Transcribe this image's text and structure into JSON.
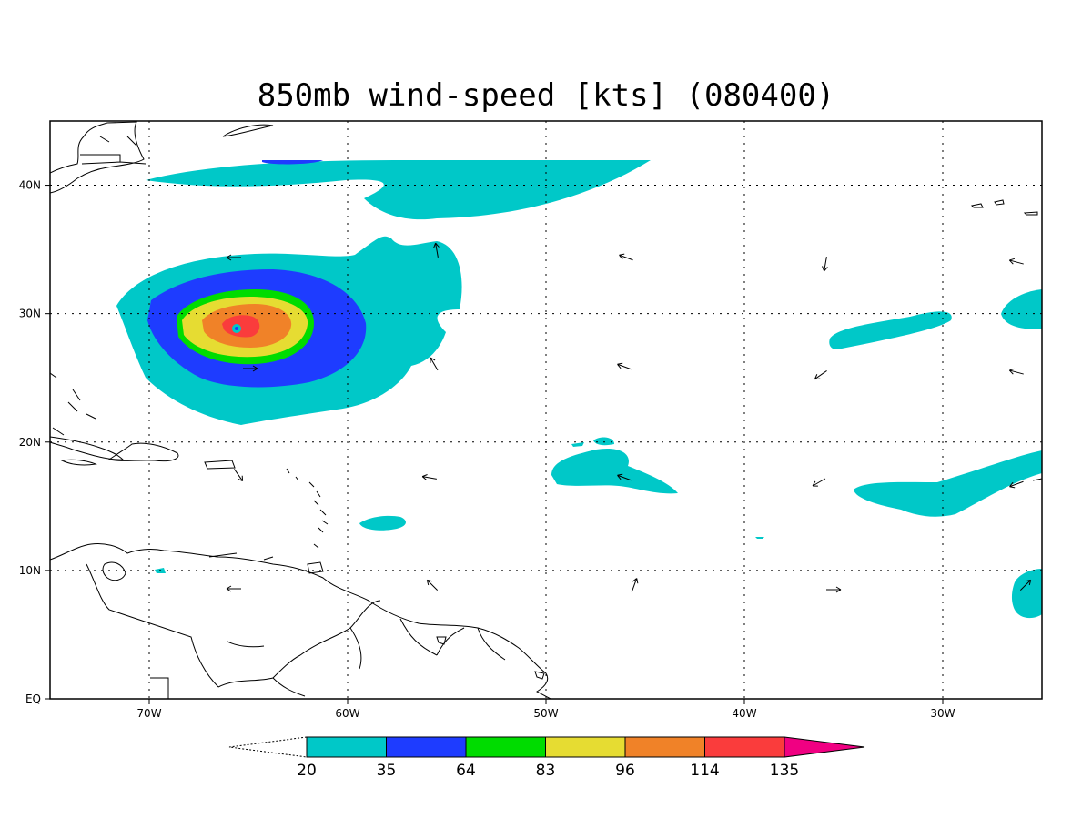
{
  "title": "850mb wind-speed [kts] (080400)",
  "map": {
    "lon_range": [
      -75,
      -25
    ],
    "lat_range": [
      0,
      45
    ],
    "lon_ticks": [
      {
        "value": -70,
        "label": "70W"
      },
      {
        "value": -60,
        "label": "60W"
      },
      {
        "value": -50,
        "label": "50W"
      },
      {
        "value": -40,
        "label": "40W"
      },
      {
        "value": -30,
        "label": "30W"
      }
    ],
    "lat_ticks": [
      {
        "value": 0,
        "label": "EQ"
      },
      {
        "value": 10,
        "label": "10N"
      },
      {
        "value": 20,
        "label": "20N"
      },
      {
        "value": 30,
        "label": "30N"
      },
      {
        "value": 40,
        "label": "40N"
      }
    ],
    "grid": "dotted",
    "hurricane_center": {
      "lon": -65.6,
      "lat": 28.8
    }
  },
  "colorbar": {
    "levels": [
      "20",
      "35",
      "64",
      "83",
      "96",
      "114",
      "135"
    ],
    "colors": [
      "#00c8c8",
      "#1e3cff",
      "#00dc00",
      "#e6dc32",
      "#f08228",
      "#fa3c3c",
      "#f00082"
    ]
  }
}
